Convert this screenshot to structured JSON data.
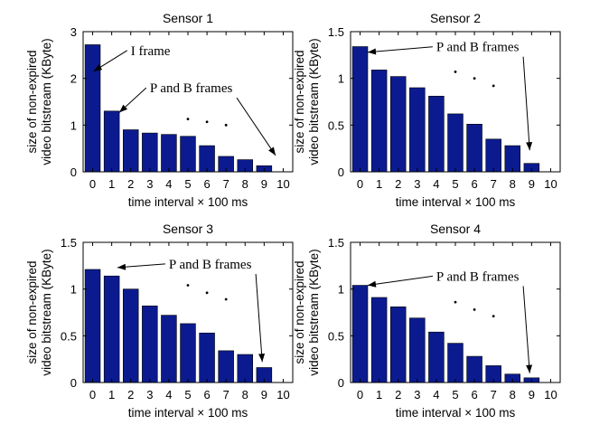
{
  "chart_data": [
    {
      "type": "bar",
      "title": "Sensor 1",
      "xlabel": "time interval × 100 ms",
      "ylabel": [
        "size of non-expired",
        "video bitstream (KByte)"
      ],
      "categories": [
        "0",
        "1",
        "2",
        "3",
        "4",
        "5",
        "6",
        "7",
        "8",
        "9",
        "10"
      ],
      "values": [
        2.72,
        1.3,
        0.9,
        0.83,
        0.8,
        0.76,
        0.56,
        0.33,
        0.26,
        0.13,
        0.0
      ],
      "ylim": [
        0,
        3
      ],
      "yticks": [
        "0",
        "1",
        "2",
        "3"
      ],
      "yticks_values": [
        0,
        1,
        2,
        3
      ],
      "grid": false,
      "annotations": [
        {
          "text": "I frame",
          "x_text": 2.0,
          "y_text": 2.5,
          "target_x": 0.05,
          "target_y": 2.15
        },
        {
          "text": "P and B frames",
          "x_text": 3.0,
          "y_text": 1.7,
          "target_x": 1.4,
          "target_y": 1.27,
          "target2_x": 9.6,
          "target2_y": 0.35
        }
      ],
      "dots": [
        [
          5.0,
          1.13
        ],
        [
          6.0,
          1.07
        ],
        [
          7.0,
          1.0
        ]
      ]
    },
    {
      "type": "bar",
      "title": "Sensor 2",
      "xlabel": "time interval × 100 ms",
      "ylabel": [
        "size of non-expired",
        "video bitstream (KByte)"
      ],
      "categories": [
        "0",
        "1",
        "2",
        "3",
        "4",
        "5",
        "6",
        "7",
        "8",
        "9",
        "10"
      ],
      "values": [
        1.34,
        1.09,
        1.02,
        0.9,
        0.81,
        0.62,
        0.51,
        0.35,
        0.28,
        0.09,
        0.0
      ],
      "ylim": [
        0,
        1.5
      ],
      "yticks": [
        "0",
        "0.5",
        "1",
        "1.5"
      ],
      "yticks_values": [
        0,
        0.5,
        1,
        1.5
      ],
      "grid": false,
      "annotations": [
        {
          "text": "P and B frames",
          "x_text": 4.0,
          "y_text": 1.29,
          "target_x": 0.4,
          "target_y": 1.28,
          "target2_x": 8.9,
          "target2_y": 0.23
        }
      ],
      "dots": [
        [
          5.0,
          1.07
        ],
        [
          6.0,
          1.0
        ],
        [
          7.0,
          0.92
        ]
      ]
    },
    {
      "type": "bar",
      "title": "Sensor 3",
      "xlabel": "time interval × 100 ms",
      "ylabel": [
        "size of non-expired",
        "video bitstream (KByte)"
      ],
      "categories": [
        "0",
        "1",
        "2",
        "3",
        "4",
        "5",
        "6",
        "7",
        "8",
        "9",
        "10"
      ],
      "values": [
        1.21,
        1.14,
        1.0,
        0.82,
        0.72,
        0.63,
        0.53,
        0.34,
        0.3,
        0.16,
        0.0
      ],
      "ylim": [
        0,
        1.5
      ],
      "yticks": [
        "0",
        "0.5",
        "1",
        "1.5"
      ],
      "yticks_values": [
        0,
        0.5,
        1,
        1.5
      ],
      "grid": false,
      "annotations": [
        {
          "text": "P and B frames",
          "x_text": 4.0,
          "y_text": 1.22,
          "target_x": 1.3,
          "target_y": 1.23,
          "target2_x": 8.9,
          "target2_y": 0.22
        }
      ],
      "dots": [
        [
          5.0,
          1.04
        ],
        [
          6.0,
          0.96
        ],
        [
          7.0,
          0.89
        ]
      ]
    },
    {
      "type": "bar",
      "title": "Sensor 4",
      "xlabel": "time interval × 100 ms",
      "ylabel": [
        "size of non-expired",
        "video bitstream (KByte)"
      ],
      "categories": [
        "0",
        "1",
        "2",
        "3",
        "4",
        "5",
        "6",
        "7",
        "8",
        "9",
        "10"
      ],
      "values": [
        1.04,
        0.91,
        0.81,
        0.69,
        0.54,
        0.42,
        0.28,
        0.18,
        0.09,
        0.05,
        0.0
      ],
      "ylim": [
        0,
        1.5
      ],
      "yticks": [
        "0",
        "0.5",
        "1",
        "1.5"
      ],
      "yticks_values": [
        0,
        0.5,
        1,
        1.5
      ],
      "grid": false,
      "annotations": [
        {
          "text": "P and B frames",
          "x_text": 4.0,
          "y_text": 1.09,
          "target_x": 0.4,
          "target_y": 1.04,
          "target2_x": 8.9,
          "target2_y": 0.1
        }
      ],
      "dots": [
        [
          5.0,
          0.86
        ],
        [
          6.0,
          0.78
        ],
        [
          7.0,
          0.71
        ]
      ]
    }
  ]
}
